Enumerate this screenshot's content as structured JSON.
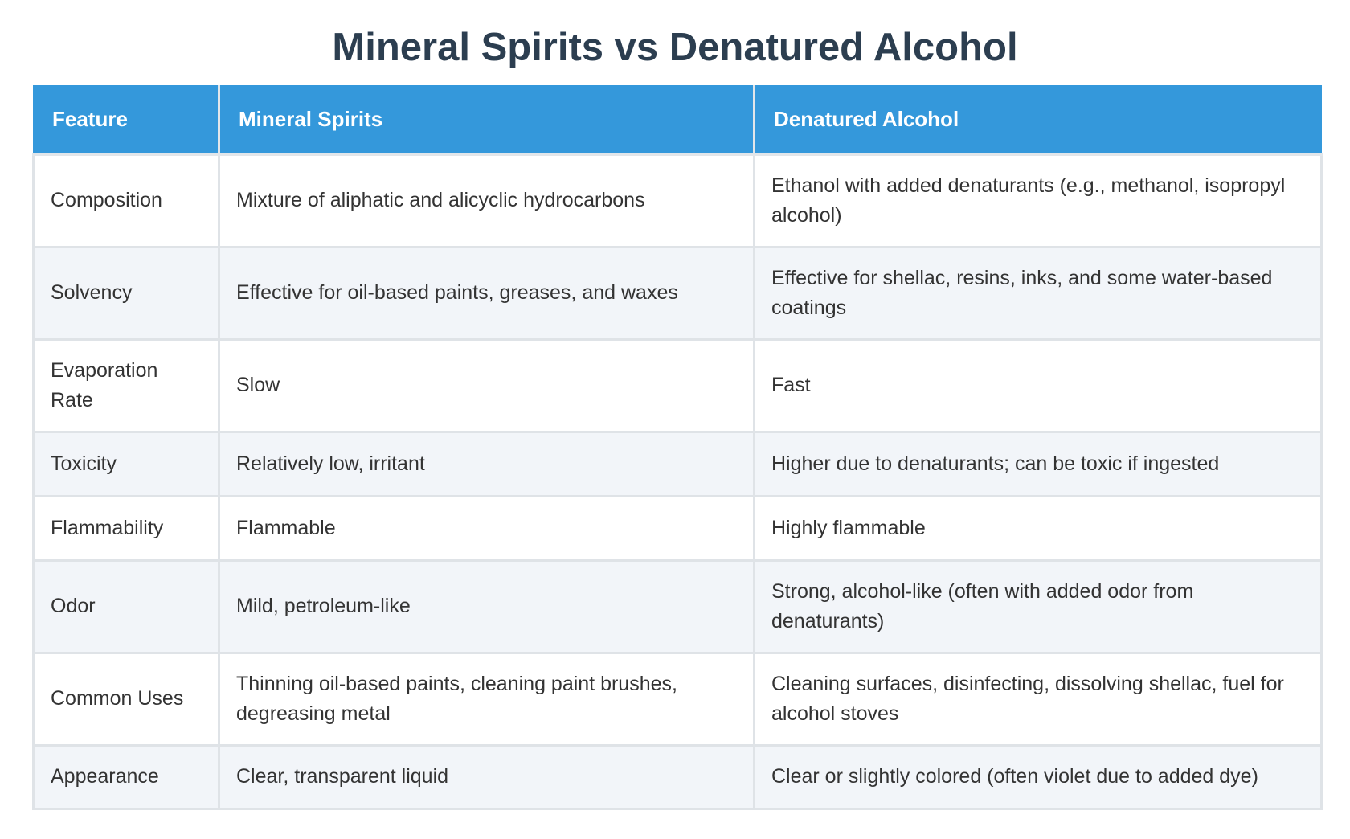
{
  "title": "Mineral Spirits vs Denatured Alcohol",
  "table": {
    "headers": [
      "Feature",
      "Mineral Spirits",
      "Denatured Alcohol"
    ],
    "rows": [
      [
        "Composition",
        "Mixture of aliphatic and alicyclic hydrocarbons",
        "Ethanol with added denaturants (e.g., methanol, isopropyl alcohol)"
      ],
      [
        "Solvency",
        "Effective for oil-based paints, greases, and waxes",
        "Effective for shellac, resins, inks, and some water-based coatings"
      ],
      [
        "Evaporation Rate",
        "Slow",
        "Fast"
      ],
      [
        "Toxicity",
        "Relatively low, irritant",
        "Higher due to denaturants; can be toxic if ingested"
      ],
      [
        "Flammability",
        "Flammable",
        "Highly flammable"
      ],
      [
        "Odor",
        "Mild, petroleum-like",
        "Strong, alcohol-like (often with added odor from denaturants)"
      ],
      [
        "Common Uses",
        "Thinning oil-based paints, cleaning paint brushes, degreasing metal",
        "Cleaning surfaces, disinfecting, dissolving shellac, fuel for alcohol stoves"
      ],
      [
        "Appearance",
        "Clear, transparent liquid",
        "Clear or slightly colored (often violet due to added dye)"
      ]
    ]
  },
  "colors": {
    "header_bg": "#3498db",
    "title": "#2c3e50",
    "stripe": "#f2f5f9",
    "border": "#dfe3e7"
  }
}
